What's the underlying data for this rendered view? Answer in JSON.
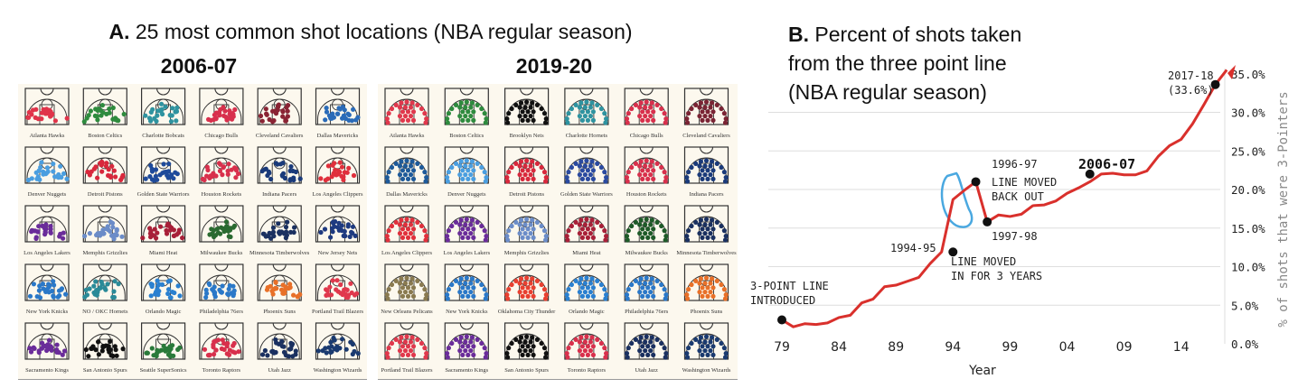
{
  "panelA": {
    "label": "A.",
    "title": "25 most common shot locations (NBA regular season)",
    "seasons": [
      {
        "season": "2006-07",
        "teams": [
          {
            "name": "Atlanta Hawks",
            "color": "#e0344a",
            "pattern": "mid"
          },
          {
            "name": "Boston Celtics",
            "color": "#2e8b3e",
            "pattern": "mid"
          },
          {
            "name": "Charlotte Bobcats",
            "color": "#2e93a0",
            "pattern": "mid"
          },
          {
            "name": "Chicago Bulls",
            "color": "#d8304c",
            "pattern": "mid"
          },
          {
            "name": "Cleveland Cavaliers",
            "color": "#8a2434",
            "pattern": "mid"
          },
          {
            "name": "Dallas Mavericks",
            "color": "#2a6bb8",
            "pattern": "mid"
          },
          {
            "name": "Denver Nuggets",
            "color": "#4a9ee0",
            "pattern": "mid"
          },
          {
            "name": "Detroit Pistons",
            "color": "#d8283c",
            "pattern": "mid"
          },
          {
            "name": "Golden State Warriors",
            "color": "#1e4a9a",
            "pattern": "mid"
          },
          {
            "name": "Houston Rockets",
            "color": "#d8304c",
            "pattern": "mid"
          },
          {
            "name": "Indiana Pacers",
            "color": "#1a3a7a",
            "pattern": "mid"
          },
          {
            "name": "Los Angeles Clippers",
            "color": "#e0303c",
            "pattern": "mid"
          },
          {
            "name": "Los Angeles Lakers",
            "color": "#6a2c9a",
            "pattern": "mid"
          },
          {
            "name": "Memphis Grizzlies",
            "color": "#6b8cc8",
            "pattern": "mid"
          },
          {
            "name": "Miami Heat",
            "color": "#a82038",
            "pattern": "mid"
          },
          {
            "name": "Milwaukee Bucks",
            "color": "#2a6a30",
            "pattern": "mid"
          },
          {
            "name": "Minnesota Timberwolves",
            "color": "#1a3060",
            "pattern": "mid"
          },
          {
            "name": "New Jersey Nets",
            "color": "#1e3a80",
            "pattern": "mid"
          },
          {
            "name": "New York Knicks",
            "color": "#2a78c8",
            "pattern": "mid"
          },
          {
            "name": "NO / OKC Hornets",
            "color": "#2a8a98",
            "pattern": "mid"
          },
          {
            "name": "Orlando Magic",
            "color": "#2a80d0",
            "pattern": "mid"
          },
          {
            "name": "Philadelphia 76ers",
            "color": "#2a78c8",
            "pattern": "mid"
          },
          {
            "name": "Phoenix Suns",
            "color": "#e87028",
            "pattern": "mid"
          },
          {
            "name": "Portland Trail Blazers",
            "color": "#e0384c",
            "pattern": "mid"
          },
          {
            "name": "Sacramento Kings",
            "color": "#6a2c9a",
            "pattern": "mid"
          },
          {
            "name": "San Antonio Spurs",
            "color": "#111111",
            "pattern": "mid"
          },
          {
            "name": "Seattle SuperSonics",
            "color": "#2a7a3a",
            "pattern": "mid"
          },
          {
            "name": "Toronto Raptors",
            "color": "#d8304c",
            "pattern": "mid"
          },
          {
            "name": "Utah Jazz",
            "color": "#1a3060",
            "pattern": "mid"
          },
          {
            "name": "Washington Wizards",
            "color": "#1a3a70",
            "pattern": "mid"
          }
        ]
      },
      {
        "season": "2019-20",
        "teams": [
          {
            "name": "Atlanta Hawks",
            "color": "#e0384c",
            "pattern": "arc"
          },
          {
            "name": "Boston Celtics",
            "color": "#2e8b3e",
            "pattern": "arc"
          },
          {
            "name": "Brooklyn Nets",
            "color": "#111111",
            "pattern": "arc"
          },
          {
            "name": "Charlotte Hornets",
            "color": "#2e93a0",
            "pattern": "arc"
          },
          {
            "name": "Chicago Bulls",
            "color": "#d8304c",
            "pattern": "arc"
          },
          {
            "name": "Cleveland Cavaliers",
            "color": "#7a2434",
            "pattern": "arc"
          },
          {
            "name": "Dallas Mavericks",
            "color": "#1e5a9a",
            "pattern": "arc"
          },
          {
            "name": "Denver Nuggets",
            "color": "#4a9ee0",
            "pattern": "arc"
          },
          {
            "name": "Detroit Pistons",
            "color": "#d8283c",
            "pattern": "arc"
          },
          {
            "name": "Golden State Warriors",
            "color": "#2a4aa0",
            "pattern": "arc"
          },
          {
            "name": "Houston Rockets",
            "color": "#d8304c",
            "pattern": "arc"
          },
          {
            "name": "Indiana Pacers",
            "color": "#1a3a7a",
            "pattern": "arc"
          },
          {
            "name": "Los Angeles Clippers",
            "color": "#e0303c",
            "pattern": "arc"
          },
          {
            "name": "Los Angeles Lakers",
            "color": "#6a2c9a",
            "pattern": "arc"
          },
          {
            "name": "Memphis Grizzlies",
            "color": "#6b8cc8",
            "pattern": "arc"
          },
          {
            "name": "Miami Heat",
            "color": "#a82038",
            "pattern": "arc"
          },
          {
            "name": "Milwaukee Bucks",
            "color": "#1e5a28",
            "pattern": "arc"
          },
          {
            "name": "Minnesota Timberwolves",
            "color": "#1a3060",
            "pattern": "arc"
          },
          {
            "name": "New Orleans Pelicans",
            "color": "#8a7a50",
            "pattern": "arc"
          },
          {
            "name": "New York Knicks",
            "color": "#2a78c8",
            "pattern": "arc"
          },
          {
            "name": "Oklahoma City Thunder",
            "color": "#e84030",
            "pattern": "arc"
          },
          {
            "name": "Orlando Magic",
            "color": "#2a80d0",
            "pattern": "arc"
          },
          {
            "name": "Philadelphia 76ers",
            "color": "#2a78c8",
            "pattern": "arc"
          },
          {
            "name": "Phoenix Suns",
            "color": "#e87028",
            "pattern": "arc"
          },
          {
            "name": "Portland Trail Blazers",
            "color": "#e0384c",
            "pattern": "arc"
          },
          {
            "name": "Sacramento Kings",
            "color": "#6a2c9a",
            "pattern": "arc"
          },
          {
            "name": "San Antonio Spurs",
            "color": "#111111",
            "pattern": "arc"
          },
          {
            "name": "Toronto Raptors",
            "color": "#d8304c",
            "pattern": "arc"
          },
          {
            "name": "Utah Jazz",
            "color": "#1a3060",
            "pattern": "arc"
          },
          {
            "name": "Washington Wizards",
            "color": "#1a3a70",
            "pattern": "arc"
          }
        ]
      }
    ]
  },
  "panelB": {
    "label": "B.",
    "title_lines": [
      "Percent of shots taken",
      "from the three point line",
      "(NBA regular season)"
    ]
  },
  "chart_data": [
    {
      "type": "table",
      "title": "A. 25 most common shot locations (NBA regular season)",
      "panels": [
        "2006-07",
        "2019-20"
      ],
      "note": "Small-multiple half-court shot maps per team; 6 columns x 5 rows per season"
    },
    {
      "type": "line",
      "title": "B. Percent of shots taken from the three point line (NBA regular season)",
      "xlabel": "Year",
      "ylabel": "% of shots that were 3-Pointers",
      "x_ticks": [
        "79",
        "84",
        "89",
        "94",
        "99",
        "04",
        "09",
        "14"
      ],
      "y_ticks": [
        "0.0%",
        "5.0%",
        "10.0%",
        "15.0%",
        "20.0%",
        "25.0%",
        "30.0%",
        "35.0%"
      ],
      "ylim": [
        0,
        35
      ],
      "grid": true,
      "line_color": "#d9302c",
      "x": [
        1979,
        1980,
        1981,
        1982,
        1983,
        1984,
        1985,
        1986,
        1987,
        1988,
        1989,
        1990,
        1991,
        1992,
        1993,
        1994,
        1995,
        1996,
        1997,
        1998,
        1999,
        2000,
        2001,
        2002,
        2003,
        2004,
        2005,
        2006,
        2007,
        2008,
        2009,
        2010,
        2011,
        2012,
        2013,
        2014,
        2015,
        2016,
        2017,
        2018
      ],
      "y": [
        3.1,
        2.2,
        2.6,
        2.5,
        2.7,
        3.4,
        3.7,
        5.3,
        5.8,
        7.4,
        7.6,
        8.1,
        8.6,
        10.4,
        11.9,
        18.7,
        19.9,
        21.0,
        15.8,
        16.7,
        16.5,
        16.8,
        17.9,
        18.0,
        18.5,
        19.5,
        20.2,
        21.0,
        22.0,
        22.1,
        21.9,
        21.9,
        22.4,
        24.3,
        25.7,
        26.5,
        28.5,
        31.0,
        33.6,
        35.5
      ],
      "annotations": [
        {
          "x": 1979,
          "y": 3.1,
          "label": "3-POINT LINE\nINTRODUCED"
        },
        {
          "x": 1994,
          "y": 11.9,
          "label": "1994-95",
          "note": "LINE MOVED\nIN FOR 3 YEARS"
        },
        {
          "x": 1996,
          "y": 21.0,
          "label": "1996-97",
          "note": "LINE MOVED\nBACK OUT"
        },
        {
          "x": 1997,
          "y": 15.8,
          "label": "1997-98"
        },
        {
          "x": 2006,
          "y": 22.0,
          "label": "2006-07"
        },
        {
          "x": 2017,
          "y": 33.6,
          "label": "2017-18\n(33.6%)"
        }
      ],
      "highlight": {
        "color": "#4aa8e0",
        "note": "blue loop around 1996-97 to 1997-98 drop"
      }
    }
  ],
  "chartB": {
    "xlabel": "Year",
    "ylabel": "% of shots that were 3-Pointers",
    "x_ticks": [
      "79",
      "84",
      "89",
      "94",
      "99",
      "04",
      "09",
      "14"
    ],
    "y_ticks": [
      "0.0%",
      "5.0%",
      "10.0%",
      "15.0%",
      "20.0%",
      "25.0%",
      "30.0%",
      "35.0%"
    ],
    "ann_intro_1": "3-POINT LINE",
    "ann_intro_2": "INTRODUCED",
    "ann_9495": "1994-95",
    "ann_in_1": "LINE MOVED",
    "ann_in_2": "IN FOR 3 YEARS",
    "ann_9697": "1996-97",
    "ann_out_1": "LINE MOVED",
    "ann_out_2": "BACK OUT",
    "ann_9798": "1997-98",
    "ann_0607": "2006-07",
    "ann_1718_1": "2017-18",
    "ann_1718_2": "(33.6%)"
  }
}
